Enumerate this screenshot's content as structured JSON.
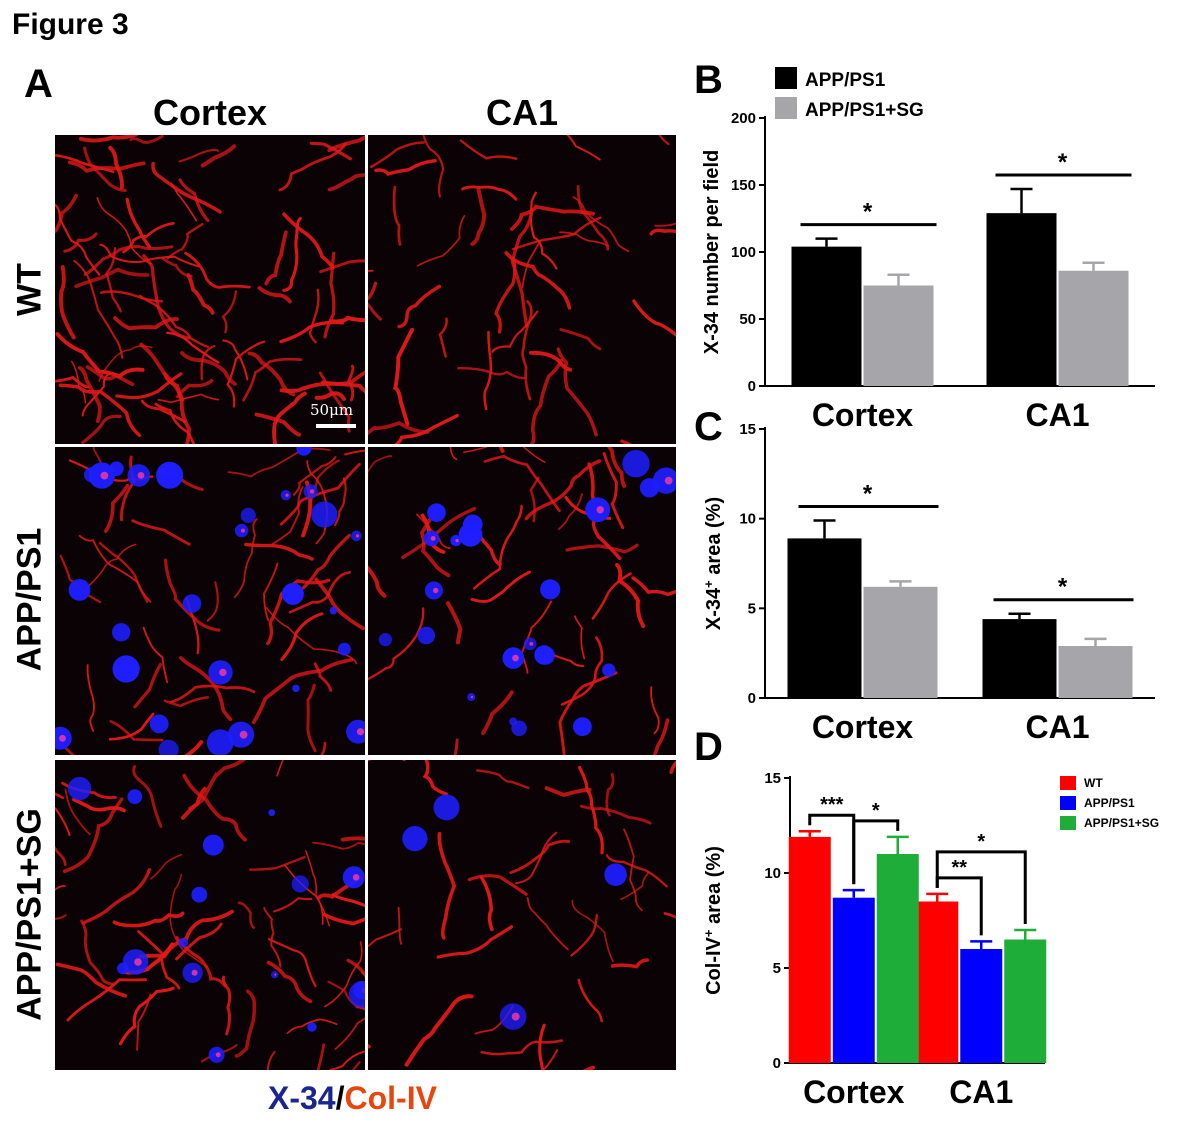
{
  "figure_title": "Figure 3",
  "panel_a": {
    "letter": "A",
    "columns": [
      "Cortex",
      "CA1"
    ],
    "rows": [
      "WT",
      "APP/PS1",
      "APP/PS1+SG"
    ],
    "scale_bar": "50μm",
    "stain_caption": {
      "part1": "X-34",
      "sep": "/",
      "part2": "Col-IV"
    },
    "colors": {
      "vessel": "#e01818",
      "plaque": "#1e1eff",
      "background": "#0b0205",
      "x34_text": "#1a2690",
      "colIV_text": "#e8450f"
    }
  },
  "chart_data": [
    {
      "panel": "B",
      "type": "bar",
      "categories": [
        "Cortex",
        "CA1"
      ],
      "ylabel": "X-34 number per field",
      "ylim": [
        0,
        200
      ],
      "yticks": [
        0,
        50,
        100,
        150,
        200
      ],
      "legend": "top-left",
      "series": [
        {
          "name": "APP/PS1",
          "color": "#000000",
          "values": [
            104,
            129
          ],
          "errors": [
            6,
            18
          ]
        },
        {
          "name": "APP/PS1+SG",
          "color": "#a6a6aa",
          "values": [
            75,
            86
          ],
          "errors": [
            8,
            6
          ]
        }
      ],
      "significance": [
        {
          "category": "Cortex",
          "between": [
            "APP/PS1",
            "APP/PS1+SG"
          ],
          "label": "*"
        },
        {
          "category": "CA1",
          "between": [
            "APP/PS1",
            "APP/PS1+SG"
          ],
          "label": "*"
        }
      ]
    },
    {
      "panel": "C",
      "type": "bar",
      "categories": [
        "Cortex",
        "CA1"
      ],
      "ylabel": "X-34+ area (%)",
      "ylabel_parts": {
        "main": "X-34",
        "sup": "+",
        "rest": " area (%)"
      },
      "ylim": [
        0,
        15
      ],
      "yticks": [
        0,
        5,
        10,
        15
      ],
      "series": [
        {
          "name": "APP/PS1",
          "color": "#000000",
          "values": [
            8.9,
            4.4
          ],
          "errors": [
            1.0,
            0.3
          ]
        },
        {
          "name": "APP/PS1+SG",
          "color": "#a6a6aa",
          "values": [
            6.2,
            2.9
          ],
          "errors": [
            0.3,
            0.4
          ]
        }
      ],
      "significance": [
        {
          "category": "Cortex",
          "between": [
            "APP/PS1",
            "APP/PS1+SG"
          ],
          "label": "*"
        },
        {
          "category": "CA1",
          "between": [
            "APP/PS1",
            "APP/PS1+SG"
          ],
          "label": "*"
        }
      ]
    },
    {
      "panel": "D",
      "type": "bar",
      "categories": [
        "Cortex",
        "CA1"
      ],
      "ylabel": "Col-IV+ area (%)",
      "ylabel_parts": {
        "main": "Col-IV",
        "sup": "+",
        "rest": " area (%)"
      },
      "ylim": [
        0,
        15
      ],
      "yticks": [
        0,
        5,
        10,
        15
      ],
      "legend": "top-right",
      "series": [
        {
          "name": "WT",
          "color": "#ff0000",
          "values": [
            11.9,
            8.5
          ],
          "errors": [
            0.3,
            0.4
          ]
        },
        {
          "name": "APP/PS1",
          "color": "#0000ff",
          "values": [
            8.7,
            6.0
          ],
          "errors": [
            0.4,
            0.4
          ]
        },
        {
          "name": "APP/PS1+SG",
          "color": "#1fad3a",
          "values": [
            11.0,
            6.5
          ],
          "errors": [
            0.9,
            0.5
          ]
        }
      ],
      "significance": [
        {
          "category": "Cortex",
          "between": [
            "WT",
            "APP/PS1"
          ],
          "label": "***"
        },
        {
          "category": "Cortex",
          "between": [
            "APP/PS1",
            "APP/PS1+SG"
          ],
          "label": "*"
        },
        {
          "category": "CA1",
          "between": [
            "WT",
            "APP/PS1"
          ],
          "label": "**"
        },
        {
          "category": "CA1",
          "between": [
            "WT",
            "APP/PS1+SG"
          ],
          "label": "*"
        }
      ]
    }
  ]
}
